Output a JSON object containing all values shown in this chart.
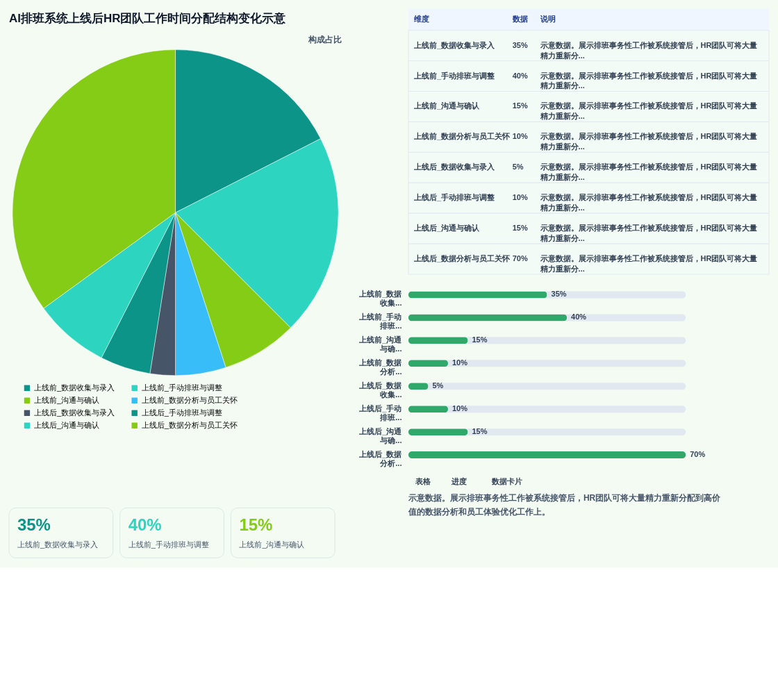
{
  "chart_data": [
    {
      "type": "pie",
      "title": "AI排班系统上线后HR团队工作时间分配结构变化示意",
      "subtitle": "构成占比",
      "categories": [
        "上线前_数据收集与录入",
        "上线前_手动排班与调整",
        "上线前_沟通与确认",
        "上线前_数据分析与员工关怀",
        "上线后_数据收集与录入",
        "上线后_手动排班与调整",
        "上线后_沟通与确认",
        "上线后_数据分析与员工关怀"
      ],
      "values": [
        17.5,
        20,
        7.5,
        5,
        2.5,
        5,
        7.5,
        35
      ],
      "colors": [
        "#0d9488",
        "#2dd4bf",
        "#84cc16",
        "#38bdf8",
        "#475569",
        "#0d9488",
        "#2dd4bf",
        "#84cc16"
      ],
      "legend": "bottom"
    },
    {
      "type": "other",
      "categories": [
        "上线前_数据收集与录入",
        "上线前_手动排班与调整",
        "上线前_沟通与确认",
        "上线前_数据分析与员工关怀",
        "上线后_数据收集与录入",
        "上线后_手动排班与调整",
        "上线后_沟通与确认",
        "上线后_数据分析与员工关怀"
      ],
      "value_labels": [
        "35%",
        "40%",
        "15%",
        "10%",
        "5%",
        "10%",
        "15%",
        "70%"
      ],
      "annotations": [
        "维度",
        "数据",
        "说明",
        "示意数据。展示排班事务性工作被系统接管后，HR团队可将大量精力重新分..."
      ]
    },
    {
      "type": "bar",
      "orientation": "horizontal",
      "categories": [
        "上线前_数据收集...",
        "上线前_手动排班...",
        "上线前_沟通与确...",
        "上线前_数据分析...",
        "上线后_数据收集...",
        "上线后_手动排班...",
        "上线后_沟通与确...",
        "上线后_数据分析..."
      ],
      "values": [
        35,
        40,
        15,
        10,
        5,
        10,
        15,
        70
      ],
      "value_labels": [
        "35%",
        "40%",
        "15%",
        "10%",
        "5%",
        "10%",
        "15%",
        "70%"
      ],
      "color": "#2fa86a",
      "annotations": [
        "表格",
        "进度",
        "数据卡片",
        "示意数据。展示排班事务性工作被系统接管后，HR团队可将大量精力重新分配到高价值的数据分析和员工体验优化工作上。"
      ]
    },
    {
      "type": "other",
      "categories": [
        "上线前_数据收集与录入",
        "上线前_手动排班与调整",
        "上线前_沟通与确认"
      ],
      "values": [
        35,
        40,
        15
      ],
      "value_labels": [
        "35%",
        "40%",
        "15%"
      ],
      "colors": [
        "#0d9488",
        "#2dd4bf",
        "#84cc16"
      ]
    }
  ]
}
